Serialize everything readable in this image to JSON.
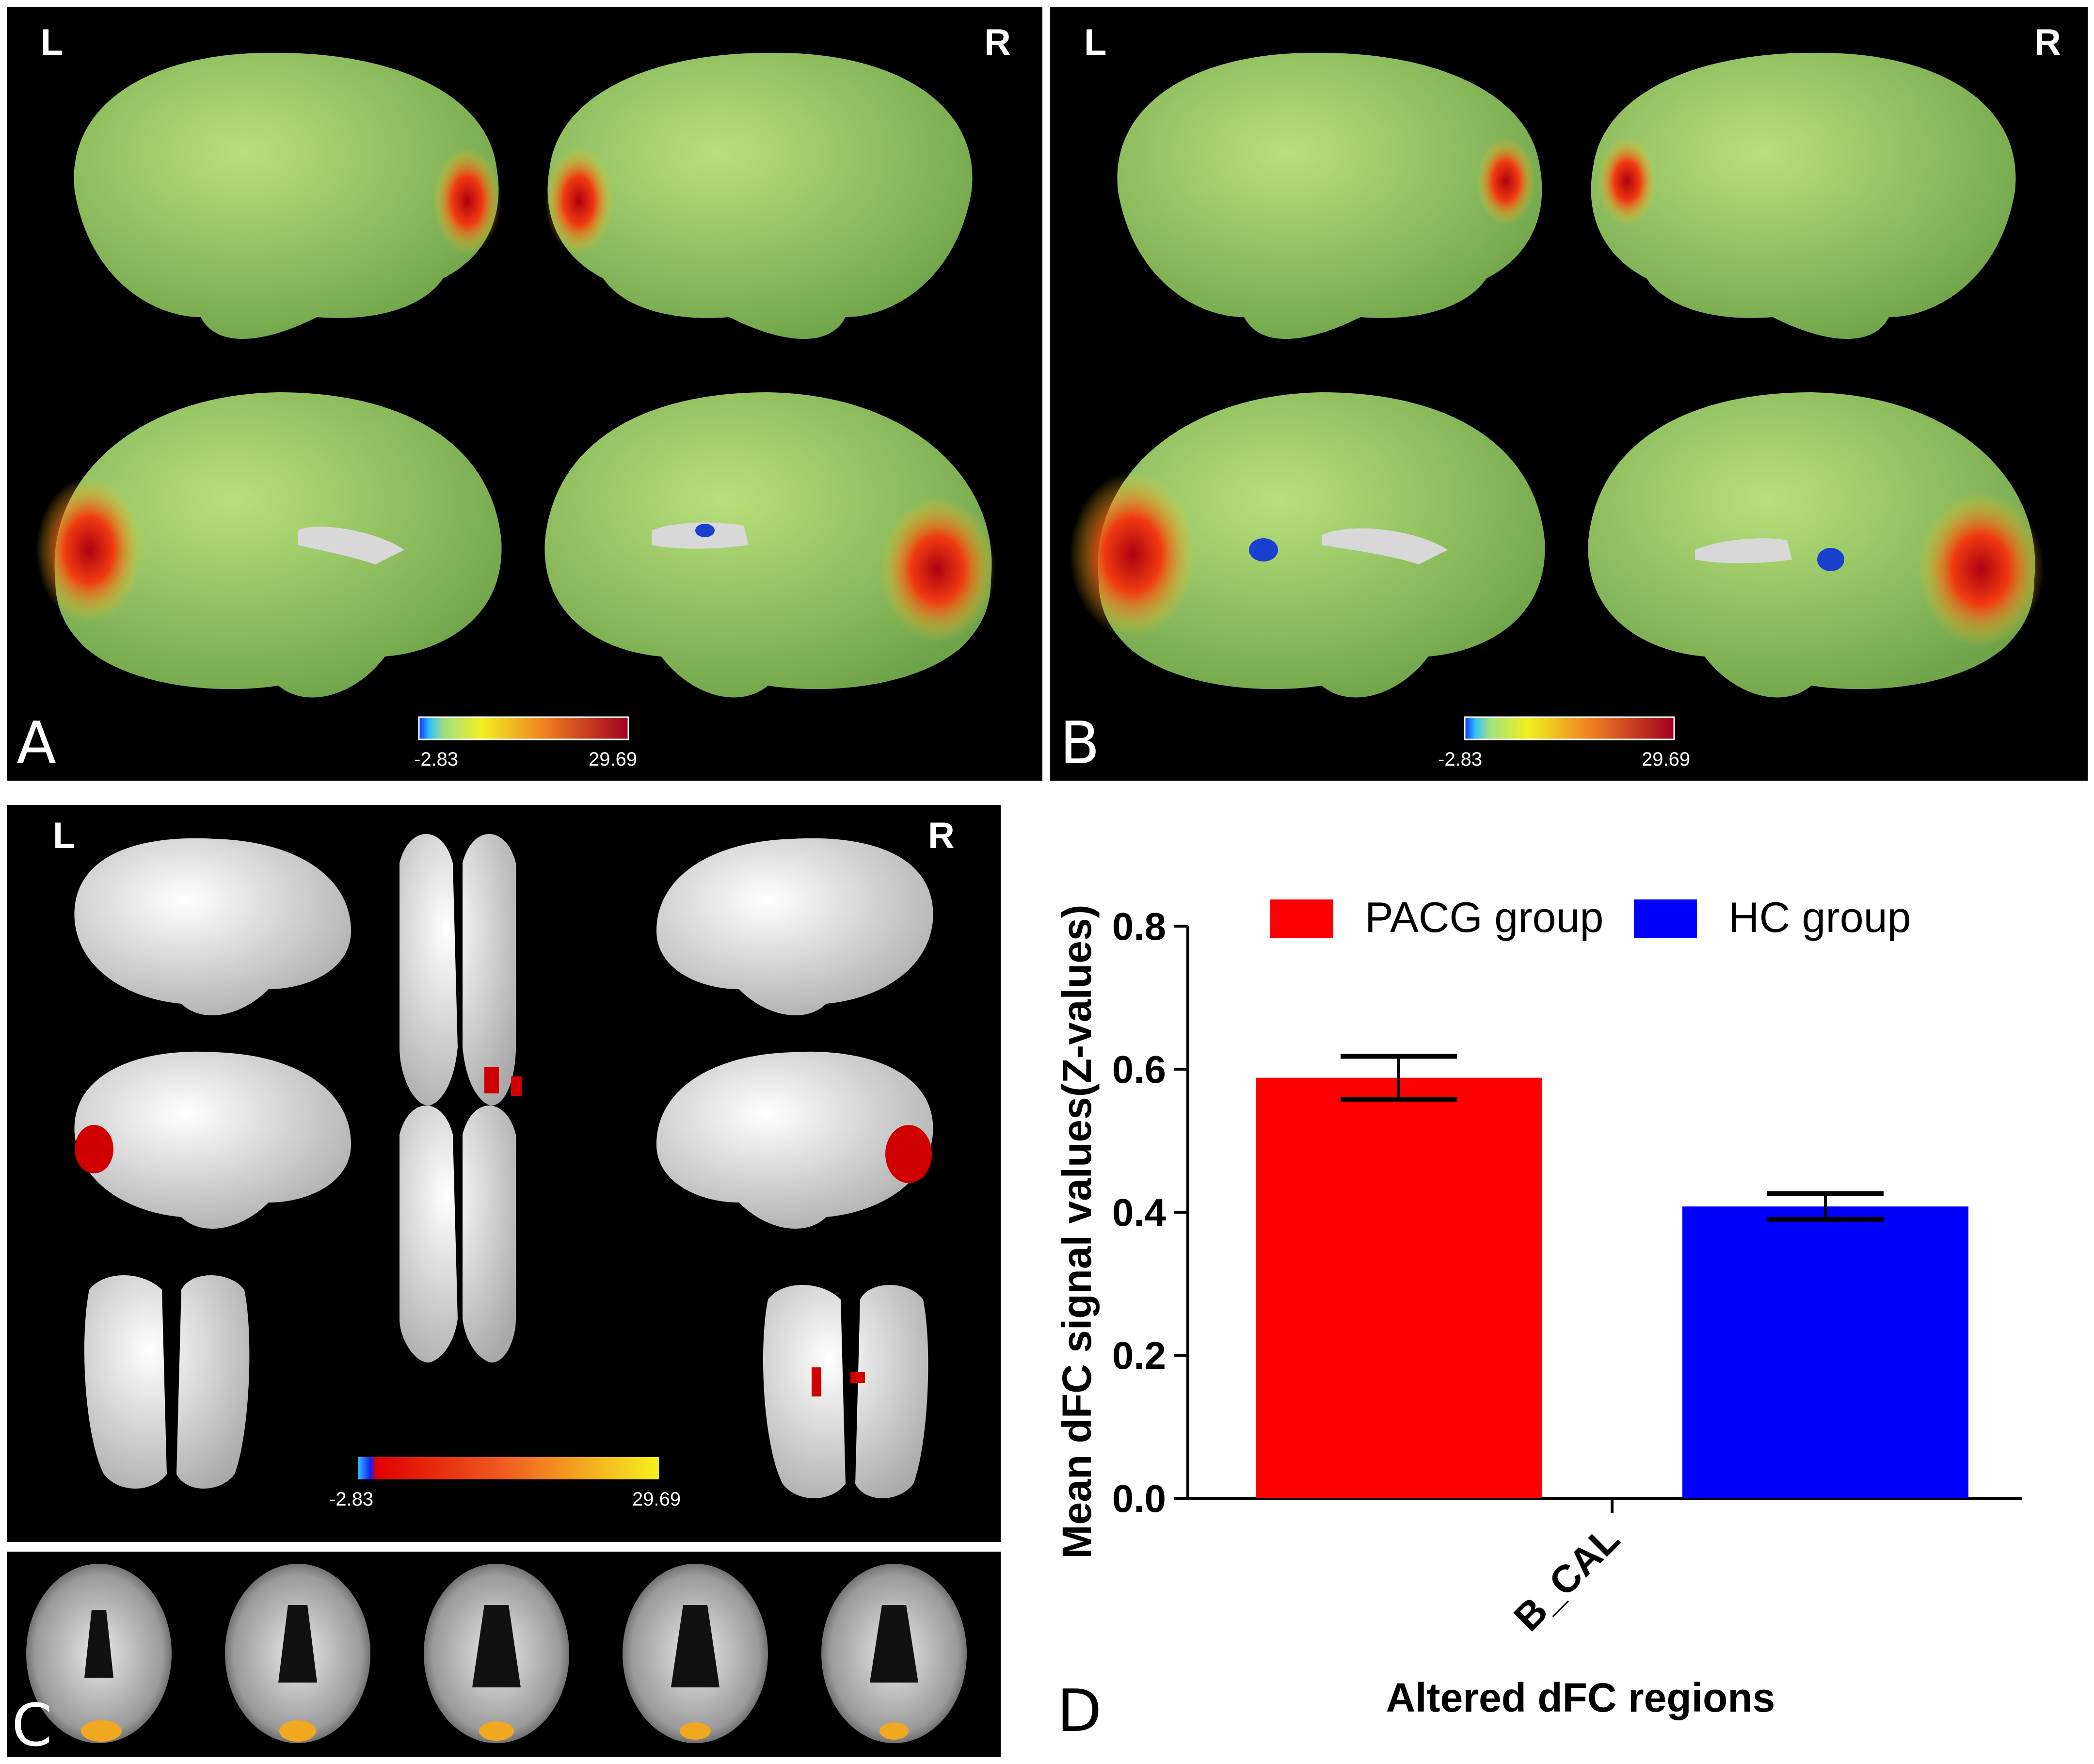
{
  "panels": {
    "A": {
      "letter": "A",
      "left": "L",
      "right": "R",
      "cbar_min": "-2.83",
      "cbar_max": "29.69"
    },
    "B": {
      "letter": "B",
      "left": "L",
      "right": "R",
      "cbar_min": "-2.83",
      "cbar_max": "29.69"
    },
    "C": {
      "letter": "C",
      "left": "L",
      "right": "R",
      "cbar_min": "-2.83",
      "cbar_max": "29.69"
    },
    "D": {
      "letter": "D"
    }
  },
  "colors": {
    "panel_bg": "#000000",
    "brain_green": "#9ccd5a",
    "brain_gray": "#d8d8d8",
    "hot": "#e81010",
    "cold": "#1a8fe0",
    "pacg": "#ff0000",
    "hc": "#0000ff"
  },
  "chart_data": {
    "type": "bar",
    "categories": [
      "B_CAL"
    ],
    "series": [
      {
        "name": "PACG group",
        "values": [
          0.588
        ],
        "error": [
          0.03
        ],
        "color": "#ff0000"
      },
      {
        "name": "HC group",
        "values": [
          0.408
        ],
        "error": [
          0.018
        ],
        "color": "#0000ff"
      }
    ],
    "xlabel": "Altered dFC regions",
    "ylabel": "Mean dFC signal values(Z-values)",
    "ylim": [
      0,
      0.8
    ],
    "yticks": [
      0.0,
      0.2,
      0.4,
      0.6,
      0.8
    ],
    "ytick_labels": [
      "0.0",
      "0.2",
      "0.4",
      "0.6",
      "0.8"
    ],
    "legend_position": "top",
    "grid": false
  }
}
